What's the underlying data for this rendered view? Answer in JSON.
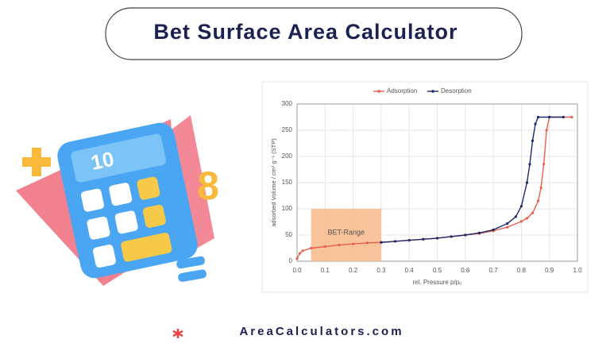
{
  "header": {
    "title": "Bet Surface Area Calculator"
  },
  "illustration": {
    "display": "10",
    "digit": "8"
  },
  "chart_data": {
    "type": "line",
    "x_label": "rel. Pressure p/p₀",
    "y_label": "adsorbed Volume / cm³ g⁻¹ (STP)",
    "xlim": [
      0,
      1
    ],
    "ylim": [
      0,
      300
    ],
    "xticks": [
      {
        "value": 0,
        "label": "0.0"
      },
      0.1,
      0.2,
      0.3,
      0.4,
      0.5,
      0.6,
      0.7,
      0.8,
      0.9,
      {
        "value": 1,
        "label": "1.0"
      }
    ],
    "yticks": [
      0,
      50,
      100,
      150,
      200,
      250,
      300
    ],
    "grid": true,
    "legend": "top",
    "bet_range": {
      "label": "BET-Range",
      "x": [
        0.05,
        0.3
      ],
      "y": [
        0,
        100
      ],
      "color": "#f7b98a"
    },
    "series": [
      {
        "name": "Adsorption",
        "color": "#e8604c",
        "x": [
          0,
          0.01,
          0.02,
          0.05,
          0.1,
          0.15,
          0.2,
          0.25,
          0.3,
          0.35,
          0.4,
          0.45,
          0.5,
          0.55,
          0.6,
          0.65,
          0.7,
          0.75,
          0.8,
          0.82,
          0.84,
          0.86,
          0.87,
          0.88,
          0.89,
          0.9,
          0.95,
          0.98
        ],
        "values": [
          5,
          15,
          20,
          25,
          28,
          31,
          33,
          35,
          36,
          38,
          40,
          42,
          44,
          47,
          50,
          53,
          58,
          65,
          76,
          82,
          92,
          115,
          140,
          185,
          250,
          275,
          275,
          275
        ]
      },
      {
        "name": "Desorption",
        "color": "#1f2a6b",
        "x": [
          0.3,
          0.35,
          0.4,
          0.45,
          0.5,
          0.55,
          0.6,
          0.65,
          0.7,
          0.75,
          0.78,
          0.8,
          0.82,
          0.83,
          0.84,
          0.85,
          0.86,
          0.9,
          0.95
        ],
        "values": [
          36,
          38,
          40,
          42,
          44,
          47,
          50,
          54,
          60,
          72,
          85,
          105,
          150,
          185,
          230,
          262,
          275,
          275,
          275
        ]
      }
    ]
  },
  "footer": {
    "site": "AreaCalculators.com"
  }
}
